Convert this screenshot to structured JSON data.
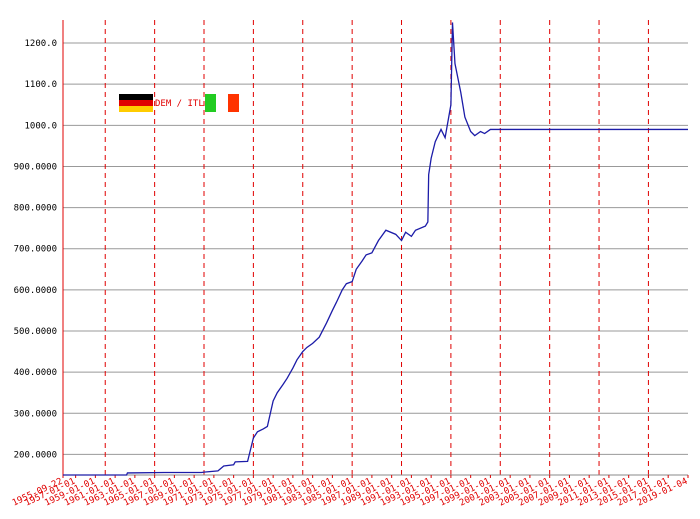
{
  "chart_data": {
    "type": "line",
    "title": "DEM / ITL",
    "x": [
      "1955-09-22",
      "1960-01-01",
      "1962-03-01",
      "1962-04-01",
      "1966-01-01",
      "1969-10-01",
      "1970-01-01",
      "1971-06-01",
      "1972-01-01",
      "1973-01-01",
      "1973-03-01",
      "1974-06-01",
      "1975-01-01",
      "1975-06-01",
      "1976-01-01",
      "1976-06-01",
      "1977-01-01",
      "1977-06-01",
      "1978-01-01",
      "1978-06-01",
      "1979-01-01",
      "1979-06-01",
      "1980-01-01",
      "1980-06-01",
      "1981-01-01",
      "1981-09-01",
      "1982-06-01",
      "1983-01-01",
      "1983-06-01",
      "1984-01-01",
      "1984-06-01",
      "1985-01-01",
      "1985-06-01",
      "1986-01-01",
      "1986-06-01",
      "1987-01-01",
      "1987-09-01",
      "1988-06-01",
      "1989-06-01",
      "1990-01-01",
      "1990-06-01",
      "1991-01-01",
      "1991-06-01",
      "1992-06-01",
      "1992-09-01",
      "1992-10-01",
      "1993-01-01",
      "1993-06-01",
      "1994-01-01",
      "1994-06-01",
      "1995-01-01",
      "1995-03-01",
      "1995-06-01",
      "1996-01-01",
      "1996-06-01",
      "1997-01-01",
      "1997-06-01",
      "1998-01-01",
      "1998-06-01",
      "1999-01-01",
      "2019-01-04"
    ],
    "series": [
      {
        "name": "DEM / ITL",
        "color": "#1c1ca8",
        "values": [
          150,
          150,
          150,
          155,
          156,
          156,
          157,
          160,
          172,
          175,
          182,
          183,
          240,
          255,
          262,
          268,
          330,
          350,
          370,
          385,
          410,
          430,
          450,
          460,
          470,
          485,
          520,
          550,
          570,
          600,
          615,
          620,
          650,
          670,
          685,
          690,
          720,
          745,
          735,
          720,
          740,
          730,
          745,
          755,
          765,
          880,
          920,
          960,
          990,
          970,
          1050,
          1250,
          1150,
          1080,
          1020,
          985,
          975,
          985,
          980,
          990,
          990
        ]
      }
    ],
    "xlim": [
      "1955-09-22",
      "2019-01-04"
    ],
    "xticks": [
      "1955-09-22",
      "1957-01-01",
      "1959-01-01",
      "1961-01-01",
      "1963-01-01",
      "1965-01-01",
      "1967-01-01",
      "1969-01-01",
      "1971-01-01",
      "1973-01-01",
      "1975-01-01",
      "1977-01-01",
      "1979-01-01",
      "1981-01-01",
      "1983-01-01",
      "1985-01-01",
      "1987-01-01",
      "1989-01-01",
      "1991-01-01",
      "1993-01-01",
      "1995-01-01",
      "1997-01-01",
      "1999-01-01",
      "2001-01-01",
      "2003-01-01",
      "2005-01-01",
      "2007-01-01",
      "2009-01-01",
      "2011-01-01",
      "2013-01-01",
      "2015-01-01",
      "2017-01-01",
      "2019-01-04"
    ],
    "xgrid": [
      "1960-01-01",
      "1965-01-01",
      "1970-01-01",
      "1975-01-01",
      "1980-01-01",
      "1985-01-01",
      "1990-01-01",
      "1995-01-01",
      "2000-01-01",
      "2005-01-01",
      "2010-01-01",
      "2015-01-01"
    ],
    "ylim": [
      150,
      1256
    ],
    "yticks": [
      {
        "value": 200,
        "label": "200.0000"
      },
      {
        "value": 300,
        "label": "300.0000"
      },
      {
        "value": 400,
        "label": "400.0000"
      },
      {
        "value": 500,
        "label": "500.0000"
      },
      {
        "value": 600,
        "label": "600.0000"
      },
      {
        "value": 700,
        "label": "700.0000"
      },
      {
        "value": 800,
        "label": "800.0000"
      },
      {
        "value": 900,
        "label": "900.0000"
      },
      {
        "value": 1000,
        "label": "1000.0"
      },
      {
        "value": 1100,
        "label": "1100.0"
      },
      {
        "value": 1200,
        "label": "1200.0"
      }
    ],
    "grid": true
  }
}
